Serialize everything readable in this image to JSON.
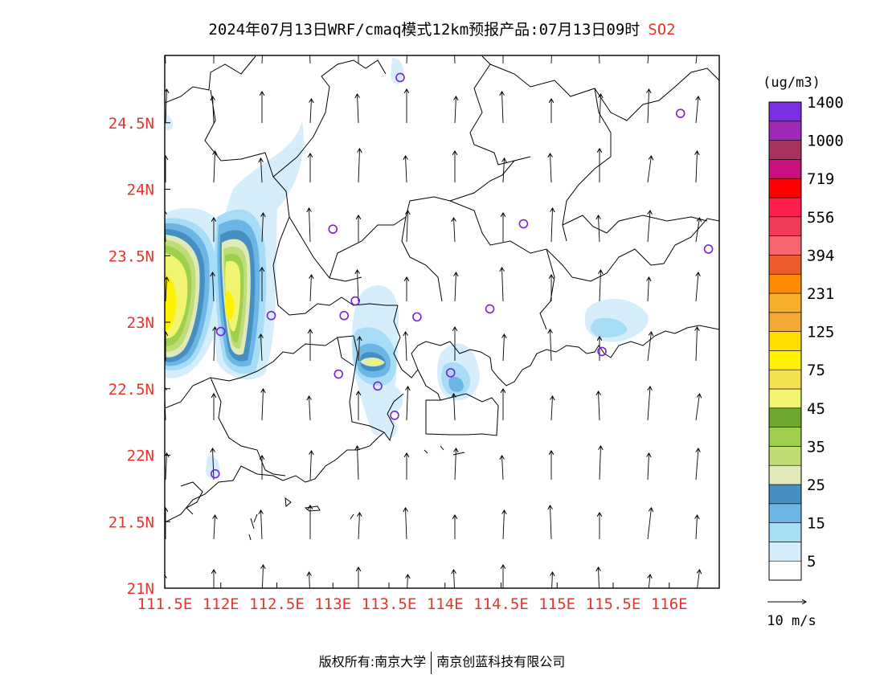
{
  "title": {
    "main": "2024年07月13日WRF/cmaq模式12km预报产品:07月13日09时",
    "variable": "SO2"
  },
  "map": {
    "lon_ticks": [
      "111.5E",
      "112E",
      "112.5E",
      "113E",
      "113.5E",
      "114E",
      "114.5E",
      "115E",
      "115.5E",
      "116E"
    ],
    "lat_ticks": [
      "21N",
      "21.5N",
      "22N",
      "22.5N",
      "23N",
      "23.5N",
      "24N",
      "24.5N"
    ],
    "axis_label_color": "#e8332a",
    "station_marker_color": "#7f1fd6"
  },
  "colorbar": {
    "unit": "(ug/m3)",
    "colors": [
      "#ffffff",
      "#d6eefb",
      "#a6dcf5",
      "#6cb6e6",
      "#458fc2",
      "#dfeabb",
      "#c0dc77",
      "#9ecf4e",
      "#6fa82e",
      "#f2f571",
      "#f5e050",
      "#fff200",
      "#ffdc00",
      "#f5a733",
      "#f8b02b",
      "#ff8c00",
      "#eb5b2c",
      "#f4666b",
      "#f23a55",
      "#ff1e4c",
      "#ff0000",
      "#c9107e",
      "#a8315d",
      "#9d2bb5",
      "#7b2fe0"
    ],
    "labels": [
      "5",
      "15",
      "25",
      "35",
      "45",
      "75",
      "125",
      "231",
      "394",
      "556",
      "719",
      "1000",
      "1400"
    ]
  },
  "wind_legend": {
    "label": "10 m/s"
  },
  "footer": {
    "left": "版权所有:南京大学",
    "right": "南京创蓝科技有限公司"
  }
}
